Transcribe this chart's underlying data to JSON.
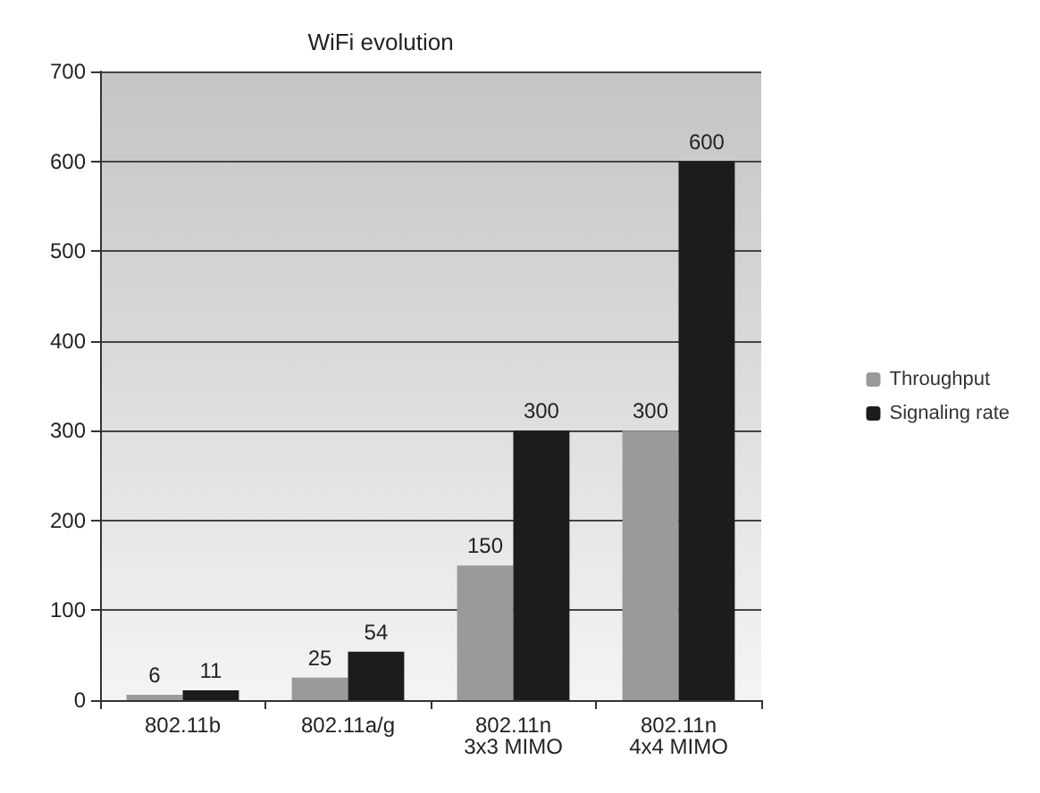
{
  "chart_data": {
    "type": "bar",
    "title": "WiFi evolution",
    "categories": [
      "802.11b",
      "802.11a/g",
      "802.11n\n3x3 MIMO",
      "802.11n\n4x4 MIMO"
    ],
    "series": [
      {
        "name": "Throughput",
        "color": "#9a9a9a",
        "values": [
          6,
          25,
          150,
          300
        ]
      },
      {
        "name": "Signaling rate",
        "color": "#1c1c1c",
        "values": [
          11,
          54,
          300,
          600
        ]
      }
    ],
    "ylim": [
      0,
      700
    ],
    "yticks": [
      0,
      100,
      200,
      300,
      400,
      500,
      600,
      700
    ],
    "grid": "y",
    "legend": "right",
    "data_labels": true
  }
}
